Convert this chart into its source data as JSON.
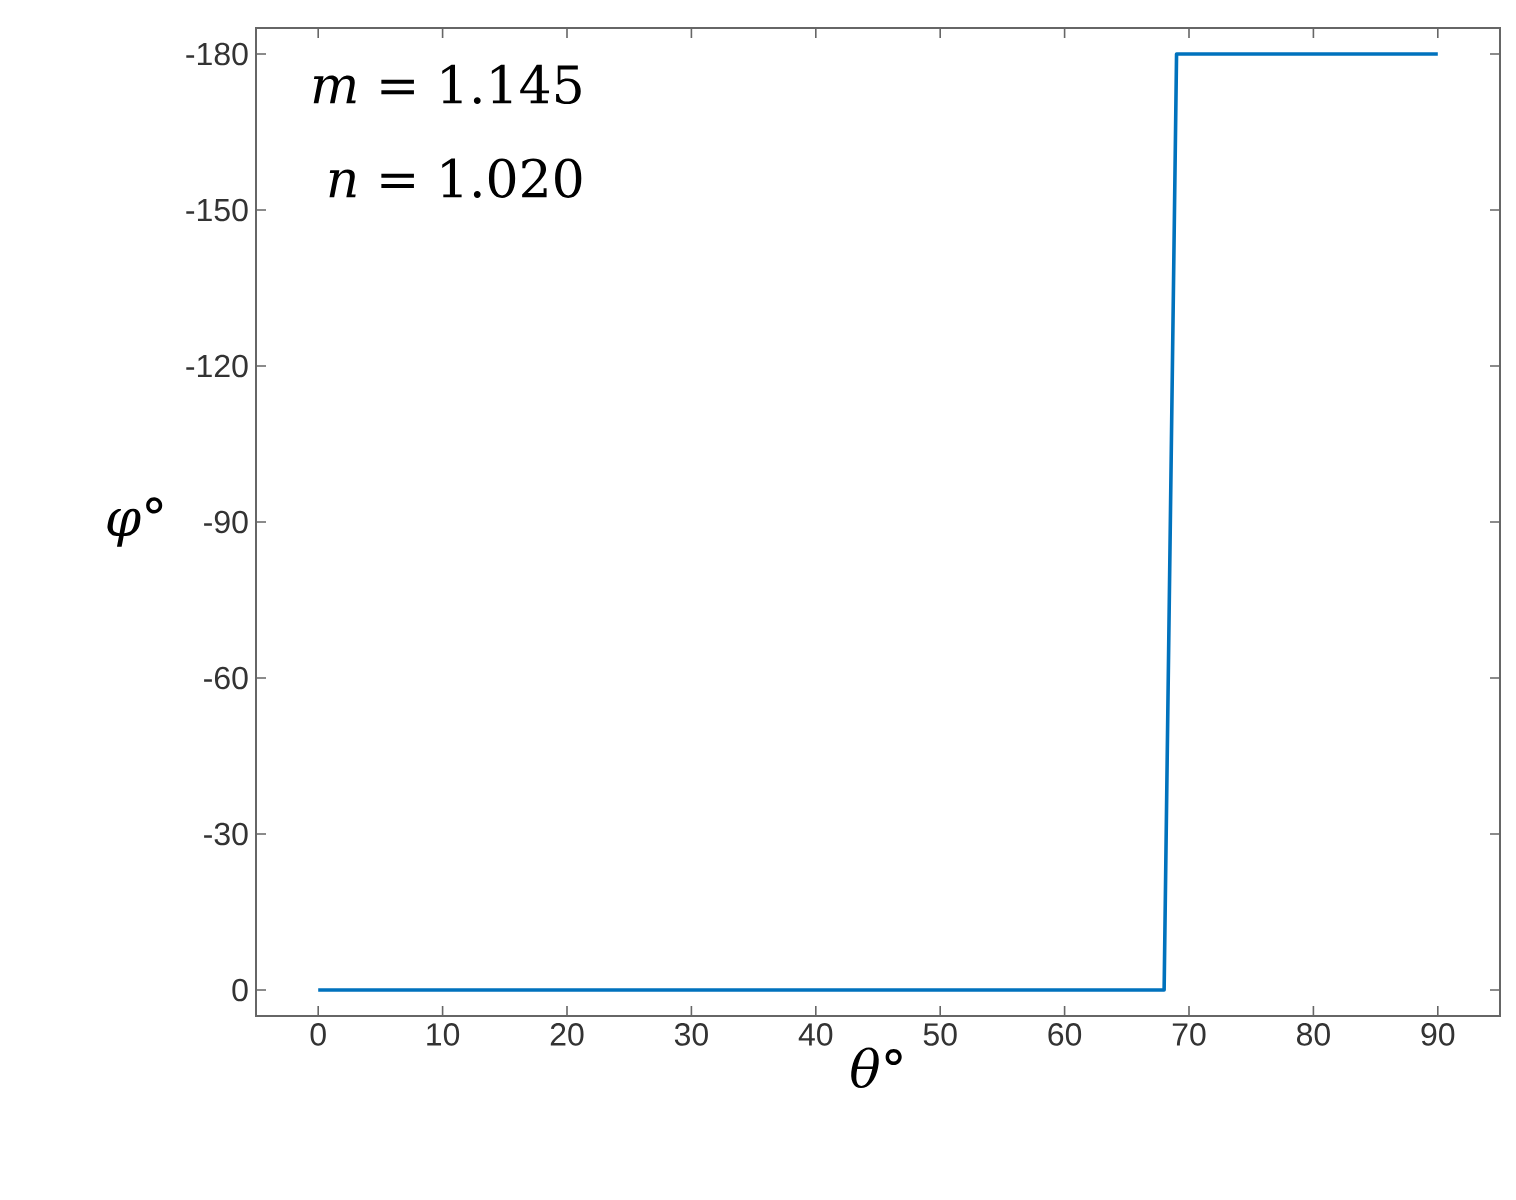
{
  "chart_data": {
    "type": "line",
    "xlabel": "*θ*°",
    "ylabel": "*φ*°",
    "annotations": [
      "*m* = 1.145",
      "*n* = 1.020"
    ],
    "x": [
      0,
      68,
      69,
      90
    ],
    "values": [
      0,
      0,
      -180,
      -180
    ],
    "color": "#0072bd",
    "xlim": [
      -5,
      95
    ],
    "ylim": [
      5,
      -185
    ],
    "xticks": [
      0,
      10,
      20,
      30,
      40,
      50,
      60,
      70,
      80,
      90
    ],
    "yticks": [
      0,
      -30,
      -60,
      -90,
      -120,
      -150,
      -180
    ],
    "grid": false,
    "line_style": "solid"
  }
}
